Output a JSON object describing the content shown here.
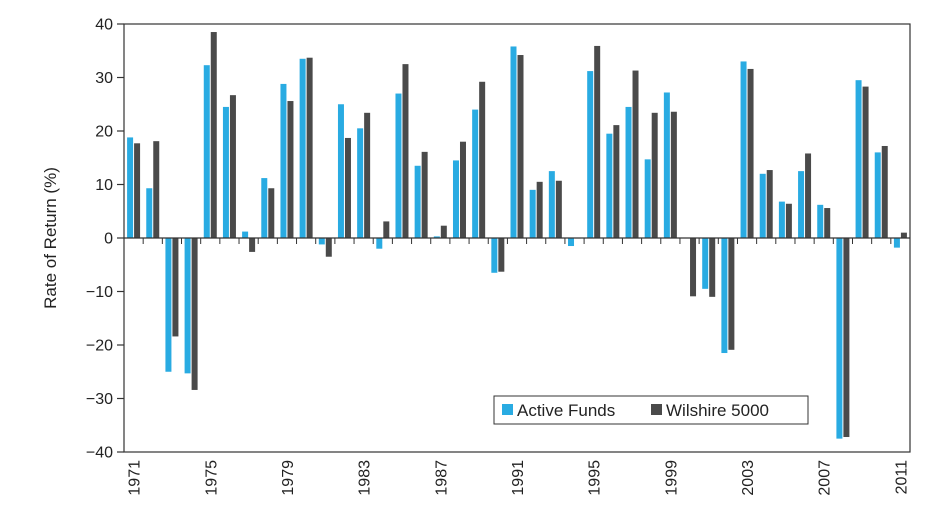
{
  "chart_data": {
    "type": "bar",
    "ylabel": "Rate of Return (%)",
    "xlabel": "",
    "ylim": [
      -40,
      40
    ],
    "yticks": [
      40,
      30,
      20,
      10,
      0,
      -10,
      -20,
      -30,
      -40
    ],
    "ytick_labels": [
      "40",
      "30",
      "20",
      "10",
      "0",
      "−10",
      "−20",
      "−30",
      "−40"
    ],
    "categories": [
      1971,
      1972,
      1973,
      1974,
      1975,
      1976,
      1977,
      1978,
      1979,
      1980,
      1981,
      1982,
      1983,
      1984,
      1985,
      1986,
      1987,
      1988,
      1989,
      1990,
      1991,
      1992,
      1993,
      1994,
      1995,
      1996,
      1997,
      1998,
      1999,
      2000,
      2001,
      2002,
      2003,
      2004,
      2005,
      2006,
      2007,
      2008,
      2009,
      2010,
      2011
    ],
    "xtick_labels": [
      "1971",
      "1975",
      "1979",
      "1983",
      "1987",
      "1991",
      "1995",
      "1999",
      "2003",
      "2007",
      "2011"
    ],
    "legend": {
      "placement": "lower-right"
    },
    "grid": false,
    "series": [
      {
        "name": "Active Funds",
        "color": "#29abe2",
        "values": [
          18.8,
          9.3,
          -25,
          -25.3,
          32.3,
          24.5,
          1.2,
          11.2,
          28.8,
          33.5,
          -1.2,
          25,
          20.5,
          -2,
          27,
          13.5,
          0.3,
          14.5,
          24,
          -6.5,
          35.8,
          9,
          12.5,
          -1.5,
          31.2,
          19.5,
          24.5,
          14.7,
          27.2,
          0,
          -9.5,
          -21.5,
          33,
          12,
          6.8,
          12.5,
          6.2,
          -37.5,
          29.5,
          16,
          -1.8
        ]
      },
      {
        "name": "Wilshire 5000",
        "color": "#4a4a4a",
        "values": [
          17.7,
          18.1,
          -18.4,
          -28.4,
          38.5,
          26.7,
          -2.6,
          9.3,
          25.6,
          33.7,
          -3.5,
          18.7,
          23.4,
          3.1,
          32.5,
          16.1,
          2.3,
          18,
          29.2,
          -6.3,
          34.2,
          10.5,
          10.7,
          -0.1,
          35.9,
          21.1,
          31.3,
          23.4,
          23.6,
          -10.9,
          -11,
          -20.9,
          31.6,
          12.7,
          6.4,
          15.8,
          5.6,
          -37.2,
          28.3,
          17.2,
          1
        ]
      }
    ]
  }
}
